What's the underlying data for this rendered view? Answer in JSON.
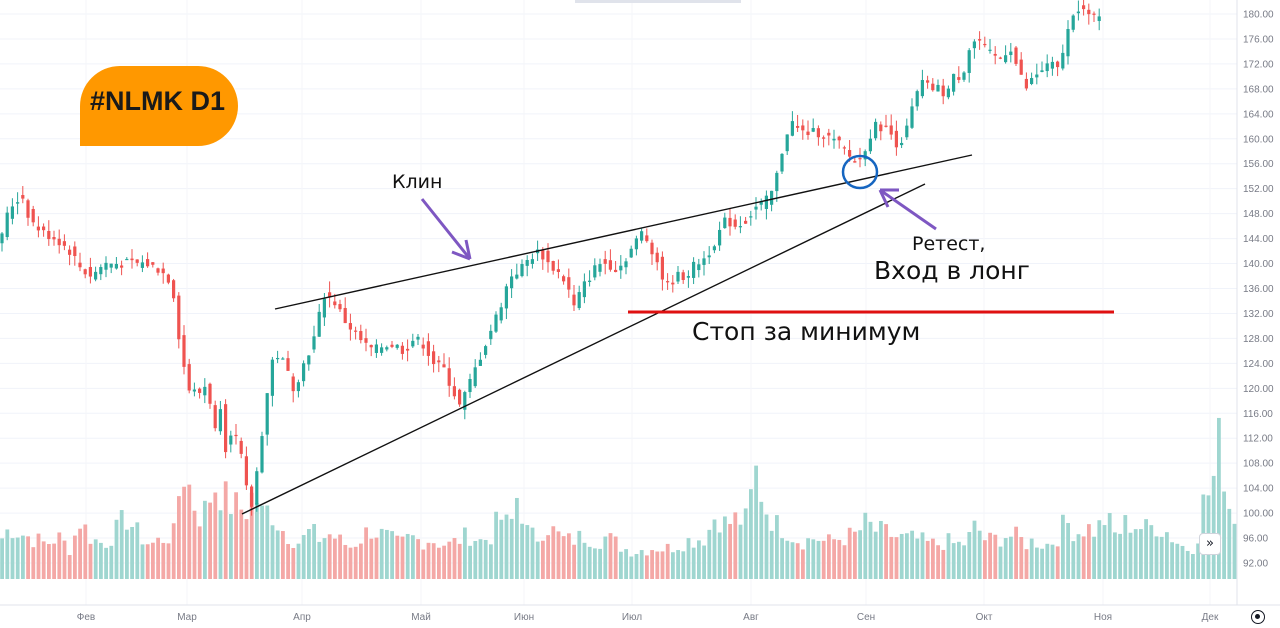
{
  "title": "#NLMK D1",
  "annotations": {
    "wedge": "Клин",
    "retest": "Ретест,",
    "entry": "Вход в лонг",
    "stop": "Стоп за минимум"
  },
  "colors": {
    "up": "#26a69a",
    "down": "#ef5350",
    "badge": "#ff9800",
    "stop_line": "#e01010",
    "circle": "#1565c0",
    "arrow": "#7e57c2"
  },
  "chart_data": {
    "type": "candlestick",
    "symbol": "NLMK",
    "timeframe": "D1",
    "y_axis_ticks": [
      "180.00",
      "176.00",
      "172.00",
      "168.00",
      "164.00",
      "160.00",
      "156.00",
      "152.00",
      "148.00",
      "144.00",
      "140.00",
      "136.00",
      "132.00",
      "128.00",
      "124.00",
      "120.00",
      "116.00",
      "112.00",
      "108.00",
      "104.00",
      "100.00",
      "96.00",
      "92.00"
    ],
    "x_axis_ticks": [
      "Фев",
      "Мар",
      "Апр",
      "Май",
      "Июн",
      "Июл",
      "Авг",
      "Сен",
      "Окт",
      "Ноя",
      "Дек"
    ],
    "ylim": [
      90.5,
      181.9
    ],
    "path_points": [
      [
        0,
        144
      ],
      [
        10,
        149
      ],
      [
        22,
        151
      ],
      [
        30,
        147
      ],
      [
        42,
        145
      ],
      [
        56,
        144
      ],
      [
        70,
        142
      ],
      [
        82,
        139
      ],
      [
        92,
        138
      ],
      [
        104,
        140
      ],
      [
        118,
        140
      ],
      [
        132,
        140
      ],
      [
        146,
        140
      ],
      [
        160,
        139
      ],
      [
        172,
        137
      ],
      [
        180,
        127
      ],
      [
        188,
        120
      ],
      [
        198,
        119
      ],
      [
        208,
        121
      ],
      [
        214,
        112
      ],
      [
        220,
        118
      ],
      [
        226,
        110
      ],
      [
        232,
        114
      ],
      [
        240,
        110
      ],
      [
        246,
        104
      ],
      [
        252,
        101
      ],
      [
        258,
        108
      ],
      [
        266,
        118
      ],
      [
        274,
        126
      ],
      [
        284,
        124
      ],
      [
        294,
        120
      ],
      [
        304,
        124
      ],
      [
        314,
        128
      ],
      [
        324,
        135
      ],
      [
        334,
        134
      ],
      [
        344,
        131
      ],
      [
        354,
        129
      ],
      [
        364,
        127
      ],
      [
        374,
        126
      ],
      [
        384,
        127
      ],
      [
        394,
        127
      ],
      [
        404,
        126
      ],
      [
        414,
        128
      ],
      [
        424,
        127
      ],
      [
        434,
        124
      ],
      [
        444,
        123
      ],
      [
        452,
        120
      ],
      [
        460,
        117
      ],
      [
        470,
        121
      ],
      [
        480,
        125
      ],
      [
        490,
        129
      ],
      [
        500,
        133
      ],
      [
        510,
        138
      ],
      [
        520,
        139
      ],
      [
        530,
        141
      ],
      [
        540,
        142
      ],
      [
        548,
        140
      ],
      [
        556,
        139
      ],
      [
        566,
        137
      ],
      [
        574,
        133
      ],
      [
        582,
        136
      ],
      [
        590,
        138
      ],
      [
        598,
        140
      ],
      [
        608,
        140
      ],
      [
        618,
        139
      ],
      [
        626,
        141
      ],
      [
        634,
        143
      ],
      [
        642,
        145
      ],
      [
        650,
        143
      ],
      [
        658,
        140
      ],
      [
        666,
        136
      ],
      [
        676,
        138
      ],
      [
        686,
        138
      ],
      [
        696,
        140
      ],
      [
        706,
        141
      ],
      [
        716,
        144
      ],
      [
        726,
        147
      ],
      [
        736,
        146
      ],
      [
        746,
        147
      ],
      [
        756,
        149
      ],
      [
        766,
        150
      ],
      [
        774,
        152
      ],
      [
        782,
        158
      ],
      [
        790,
        163
      ],
      [
        800,
        161
      ],
      [
        810,
        161
      ],
      [
        820,
        161
      ],
      [
        830,
        160
      ],
      [
        840,
        159
      ],
      [
        850,
        157
      ],
      [
        858,
        156
      ],
      [
        866,
        159
      ],
      [
        874,
        162
      ],
      [
        882,
        162
      ],
      [
        890,
        161
      ],
      [
        898,
        159
      ],
      [
        906,
        161
      ],
      [
        914,
        166
      ],
      [
        922,
        169
      ],
      [
        930,
        168
      ],
      [
        938,
        168
      ],
      [
        946,
        167
      ],
      [
        954,
        170
      ],
      [
        962,
        170
      ],
      [
        970,
        175
      ],
      [
        978,
        176
      ],
      [
        986,
        174
      ],
      [
        994,
        173
      ],
      [
        1002,
        173
      ],
      [
        1010,
        175
      ],
      [
        1018,
        171
      ],
      [
        1026,
        168
      ],
      [
        1034,
        170
      ],
      [
        1042,
        171
      ],
      [
        1050,
        172
      ],
      [
        1058,
        171
      ],
      [
        1066,
        176
      ],
      [
        1074,
        181
      ],
      [
        1082,
        181
      ],
      [
        1090,
        179
      ],
      [
        1098,
        180
      ]
    ],
    "volume_profile": [
      [
        0,
        38
      ],
      [
        10,
        52
      ],
      [
        22,
        45
      ],
      [
        34,
        40
      ],
      [
        46,
        35
      ],
      [
        58,
        42
      ],
      [
        70,
        30
      ],
      [
        80,
        58
      ],
      [
        92,
        40
      ],
      [
        104,
        35
      ],
      [
        116,
        48
      ],
      [
        126,
        62
      ],
      [
        138,
        45
      ],
      [
        150,
        34
      ],
      [
        162,
        40
      ],
      [
        174,
        45
      ],
      [
        182,
        112
      ],
      [
        190,
        90
      ],
      [
        198,
        62
      ],
      [
        206,
        70
      ],
      [
        214,
        95
      ],
      [
        222,
        85
      ],
      [
        230,
        75
      ],
      [
        238,
        72
      ],
      [
        246,
        68
      ],
      [
        254,
        88
      ],
      [
        262,
        65
      ],
      [
        270,
        70
      ],
      [
        280,
        52
      ],
      [
        290,
        42
      ],
      [
        300,
        36
      ],
      [
        310,
        48
      ],
      [
        320,
        40
      ],
      [
        330,
        45
      ],
      [
        340,
        38
      ],
      [
        350,
        32
      ],
      [
        360,
        40
      ],
      [
        370,
        50
      ],
      [
        380,
        45
      ],
      [
        390,
        40
      ],
      [
        400,
        34
      ],
      [
        410,
        42
      ],
      [
        420,
        38
      ],
      [
        430,
        40
      ],
      [
        440,
        36
      ],
      [
        450,
        34
      ],
      [
        460,
        40
      ],
      [
        470,
        44
      ],
      [
        480,
        38
      ],
      [
        490,
        42
      ],
      [
        500,
        62
      ],
      [
        510,
        50
      ],
      [
        518,
        88
      ],
      [
        526,
        48
      ],
      [
        536,
        40
      ],
      [
        546,
        55
      ],
      [
        556,
        45
      ],
      [
        566,
        38
      ],
      [
        576,
        40
      ],
      [
        586,
        44
      ],
      [
        596,
        38
      ],
      [
        606,
        42
      ],
      [
        616,
        36
      ],
      [
        626,
        30
      ],
      [
        636,
        28
      ],
      [
        646,
        30
      ],
      [
        656,
        32
      ],
      [
        666,
        30
      ],
      [
        676,
        34
      ],
      [
        686,
        38
      ],
      [
        696,
        40
      ],
      [
        706,
        42
      ],
      [
        716,
        66
      ],
      [
        726,
        54
      ],
      [
        736,
        60
      ],
      [
        746,
        58
      ],
      [
        756,
        106
      ],
      [
        766,
        70
      ],
      [
        776,
        54
      ],
      [
        786,
        50
      ],
      [
        796,
        40
      ],
      [
        806,
        38
      ],
      [
        816,
        42
      ],
      [
        826,
        36
      ],
      [
        836,
        40
      ],
      [
        846,
        42
      ],
      [
        856,
        44
      ],
      [
        866,
        56
      ],
      [
        876,
        48
      ],
      [
        886,
        46
      ],
      [
        896,
        42
      ],
      [
        906,
        40
      ],
      [
        916,
        40
      ],
      [
        926,
        36
      ],
      [
        936,
        34
      ],
      [
        946,
        38
      ],
      [
        956,
        34
      ],
      [
        966,
        36
      ],
      [
        976,
        54
      ],
      [
        986,
        38
      ],
      [
        996,
        40
      ],
      [
        1006,
        44
      ],
      [
        1016,
        42
      ],
      [
        1026,
        36
      ],
      [
        1036,
        38
      ],
      [
        1046,
        34
      ],
      [
        1056,
        40
      ],
      [
        1066,
        58
      ],
      [
        1076,
        46
      ],
      [
        1086,
        52
      ],
      [
        1096,
        48
      ],
      [
        1106,
        62
      ],
      [
        1116,
        42
      ],
      [
        1126,
        56
      ],
      [
        1136,
        54
      ],
      [
        1146,
        50
      ],
      [
        1156,
        54
      ],
      [
        1166,
        48
      ],
      [
        1176,
        38
      ],
      [
        1186,
        30
      ],
      [
        1196,
        34
      ],
      [
        1204,
        80
      ],
      [
        1212,
        90
      ],
      [
        1220,
        142
      ],
      [
        1228,
        76
      ],
      [
        1234,
        64
      ]
    ]
  }
}
